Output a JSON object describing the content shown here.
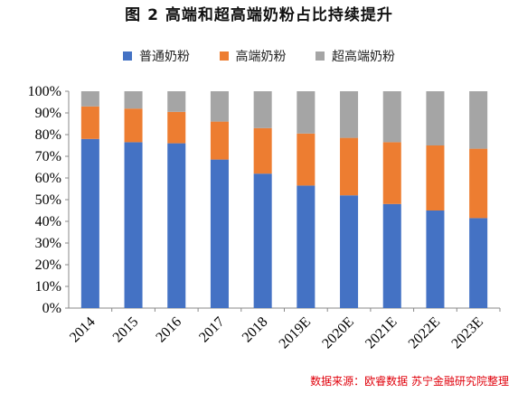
{
  "chart_data": {
    "type": "bar",
    "stacked": true,
    "title": "图 2  高端和超高端奶粉占比持续提升",
    "categories": [
      "2014",
      "2015",
      "2016",
      "2017",
      "2018",
      "2019E",
      "2020E",
      "2021E",
      "2022E",
      "2023E"
    ],
    "series": [
      {
        "name": "普通奶粉",
        "color": "#4472C4",
        "values": [
          78,
          76.5,
          76,
          68.5,
          62,
          56.5,
          52,
          48,
          45,
          41.5
        ]
      },
      {
        "name": "高端奶粉",
        "color": "#ED7D31",
        "values": [
          15,
          15.5,
          14.5,
          17.5,
          21,
          24,
          26.5,
          28.5,
          30,
          32
        ]
      },
      {
        "name": "超高端奶粉",
        "color": "#A5A5A5",
        "values": [
          7,
          8,
          9.5,
          14,
          17,
          19.5,
          21.5,
          23.5,
          25,
          26.5
        ]
      }
    ],
    "ylim": [
      0,
      100
    ],
    "yticks": [
      "0%",
      "10%",
      "20%",
      "30%",
      "40%",
      "50%",
      "60%",
      "70%",
      "80%",
      "90%",
      "100%"
    ],
    "legend_position": "top-center",
    "grid": false
  },
  "source": "数据来源：欧睿数据  苏宁金融研究院整理"
}
